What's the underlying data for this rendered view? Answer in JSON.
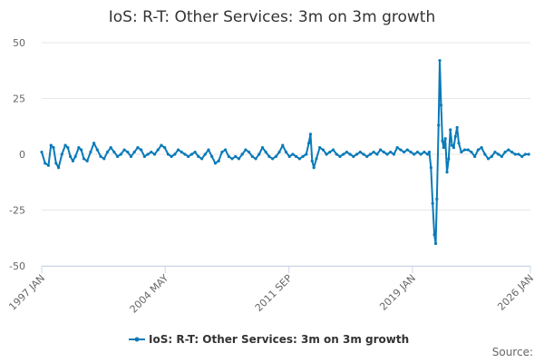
{
  "chart_data": {
    "type": "line",
    "title": "IoS: R-T: Other Services: 3m on 3m growth",
    "xlabel": "",
    "ylabel": "",
    "ylim": [
      -50,
      50
    ],
    "yticks": [
      50,
      25,
      0,
      -25,
      -50
    ],
    "xlim": [
      1997.0,
      2026.0
    ],
    "xticks": [
      {
        "label": "1997 JAN",
        "x": 1997.0
      },
      {
        "label": "2004 MAY",
        "x": 2004.33
      },
      {
        "label": "2011 SEP",
        "x": 2011.67
      },
      {
        "label": "2019 JAN",
        "x": 2019.0
      },
      {
        "label": "2026 JAN",
        "x": 2026.0
      }
    ],
    "series": [
      {
        "name": "IoS: R-T: Other Services: 3m on 3m growth",
        "color": "#0a7ab8",
        "points": [
          [
            1997.0,
            1
          ],
          [
            1997.2,
            -4
          ],
          [
            1997.4,
            -5
          ],
          [
            1997.55,
            4
          ],
          [
            1997.7,
            3
          ],
          [
            1997.85,
            -4
          ],
          [
            1998.0,
            -6
          ],
          [
            1998.2,
            0
          ],
          [
            1998.4,
            4
          ],
          [
            1998.55,
            3
          ],
          [
            1998.7,
            -1
          ],
          [
            1998.85,
            -3
          ],
          [
            1999.0,
            -1
          ],
          [
            1999.2,
            3
          ],
          [
            1999.35,
            2
          ],
          [
            1999.5,
            -2
          ],
          [
            1999.7,
            -3
          ],
          [
            1999.9,
            1
          ],
          [
            2000.1,
            5
          ],
          [
            2000.3,
            2
          ],
          [
            2000.5,
            -1
          ],
          [
            2000.7,
            -2
          ],
          [
            2000.9,
            1
          ],
          [
            2001.1,
            3
          ],
          [
            2001.3,
            1
          ],
          [
            2001.5,
            -1
          ],
          [
            2001.7,
            0
          ],
          [
            2001.9,
            2
          ],
          [
            2002.1,
            1
          ],
          [
            2002.3,
            -1
          ],
          [
            2002.5,
            1
          ],
          [
            2002.7,
            3
          ],
          [
            2002.9,
            2
          ],
          [
            2003.1,
            -1
          ],
          [
            2003.3,
            0
          ],
          [
            2003.5,
            1
          ],
          [
            2003.7,
            0
          ],
          [
            2003.9,
            2
          ],
          [
            2004.1,
            4
          ],
          [
            2004.3,
            3
          ],
          [
            2004.5,
            0
          ],
          [
            2004.7,
            -1
          ],
          [
            2004.9,
            0
          ],
          [
            2005.1,
            2
          ],
          [
            2005.3,
            1
          ],
          [
            2005.5,
            0
          ],
          [
            2005.7,
            -1
          ],
          [
            2005.9,
            0
          ],
          [
            2006.1,
            1
          ],
          [
            2006.3,
            -1
          ],
          [
            2006.5,
            -2
          ],
          [
            2006.7,
            0
          ],
          [
            2006.9,
            2
          ],
          [
            2007.1,
            -1
          ],
          [
            2007.3,
            -4
          ],
          [
            2007.5,
            -3
          ],
          [
            2007.7,
            1
          ],
          [
            2007.9,
            2
          ],
          [
            2008.1,
            -1
          ],
          [
            2008.3,
            -2
          ],
          [
            2008.5,
            -1
          ],
          [
            2008.7,
            -2
          ],
          [
            2008.9,
            0
          ],
          [
            2009.1,
            2
          ],
          [
            2009.3,
            1
          ],
          [
            2009.5,
            -1
          ],
          [
            2009.7,
            -2
          ],
          [
            2009.9,
            0
          ],
          [
            2010.1,
            3
          ],
          [
            2010.3,
            1
          ],
          [
            2010.5,
            -1
          ],
          [
            2010.7,
            -2
          ],
          [
            2010.9,
            -1
          ],
          [
            2011.1,
            1
          ],
          [
            2011.3,
            4
          ],
          [
            2011.5,
            1
          ],
          [
            2011.7,
            -1
          ],
          [
            2011.9,
            0
          ],
          [
            2012.1,
            -1
          ],
          [
            2012.3,
            -2
          ],
          [
            2012.5,
            -1
          ],
          [
            2012.7,
            0
          ],
          [
            2012.85,
            5
          ],
          [
            2012.95,
            9
          ],
          [
            2013.05,
            -3
          ],
          [
            2013.15,
            -6
          ],
          [
            2013.3,
            -2
          ],
          [
            2013.5,
            3
          ],
          [
            2013.7,
            2
          ],
          [
            2013.9,
            0
          ],
          [
            2014.1,
            1
          ],
          [
            2014.3,
            2
          ],
          [
            2014.5,
            0
          ],
          [
            2014.7,
            -1
          ],
          [
            2014.9,
            0
          ],
          [
            2015.1,
            1
          ],
          [
            2015.3,
            0
          ],
          [
            2015.5,
            -1
          ],
          [
            2015.7,
            0
          ],
          [
            2015.9,
            1
          ],
          [
            2016.1,
            0
          ],
          [
            2016.3,
            -1
          ],
          [
            2016.5,
            0
          ],
          [
            2016.7,
            1
          ],
          [
            2016.9,
            0
          ],
          [
            2017.1,
            2
          ],
          [
            2017.3,
            1
          ],
          [
            2017.5,
            0
          ],
          [
            2017.7,
            1
          ],
          [
            2017.9,
            0
          ],
          [
            2018.1,
            3
          ],
          [
            2018.3,
            2
          ],
          [
            2018.5,
            1
          ],
          [
            2018.7,
            2
          ],
          [
            2018.9,
            1
          ],
          [
            2019.1,
            0
          ],
          [
            2019.3,
            1
          ],
          [
            2019.5,
            0
          ],
          [
            2019.7,
            1
          ],
          [
            2019.9,
            0
          ],
          [
            2020.0,
            1
          ],
          [
            2020.1,
            -6
          ],
          [
            2020.2,
            -22
          ],
          [
            2020.3,
            -36
          ],
          [
            2020.38,
            -40
          ],
          [
            2020.45,
            -20
          ],
          [
            2020.55,
            13
          ],
          [
            2020.62,
            42
          ],
          [
            2020.7,
            22
          ],
          [
            2020.78,
            6
          ],
          [
            2020.85,
            3
          ],
          [
            2020.95,
            7
          ],
          [
            2021.05,
            -8
          ],
          [
            2021.15,
            -2
          ],
          [
            2021.25,
            11
          ],
          [
            2021.35,
            4
          ],
          [
            2021.45,
            3
          ],
          [
            2021.55,
            8
          ],
          [
            2021.65,
            12
          ],
          [
            2021.75,
            5
          ],
          [
            2021.9,
            1
          ],
          [
            2022.1,
            2
          ],
          [
            2022.3,
            2
          ],
          [
            2022.5,
            1
          ],
          [
            2022.7,
            -1
          ],
          [
            2022.9,
            2
          ],
          [
            2023.1,
            3
          ],
          [
            2023.3,
            0
          ],
          [
            2023.5,
            -2
          ],
          [
            2023.7,
            -1
          ],
          [
            2023.9,
            1
          ],
          [
            2024.1,
            0
          ],
          [
            2024.3,
            -1
          ],
          [
            2024.5,
            1
          ],
          [
            2024.7,
            2
          ],
          [
            2024.9,
            1
          ],
          [
            2025.1,
            0
          ],
          [
            2025.3,
            0
          ],
          [
            2025.5,
            -1
          ],
          [
            2025.7,
            0
          ],
          [
            2025.9,
            0
          ]
        ]
      }
    ],
    "legend": {
      "position": "bottom-center",
      "label": "IoS: R-T: Other Services: 3m on 3m growth"
    },
    "source_label": "Source:"
  }
}
